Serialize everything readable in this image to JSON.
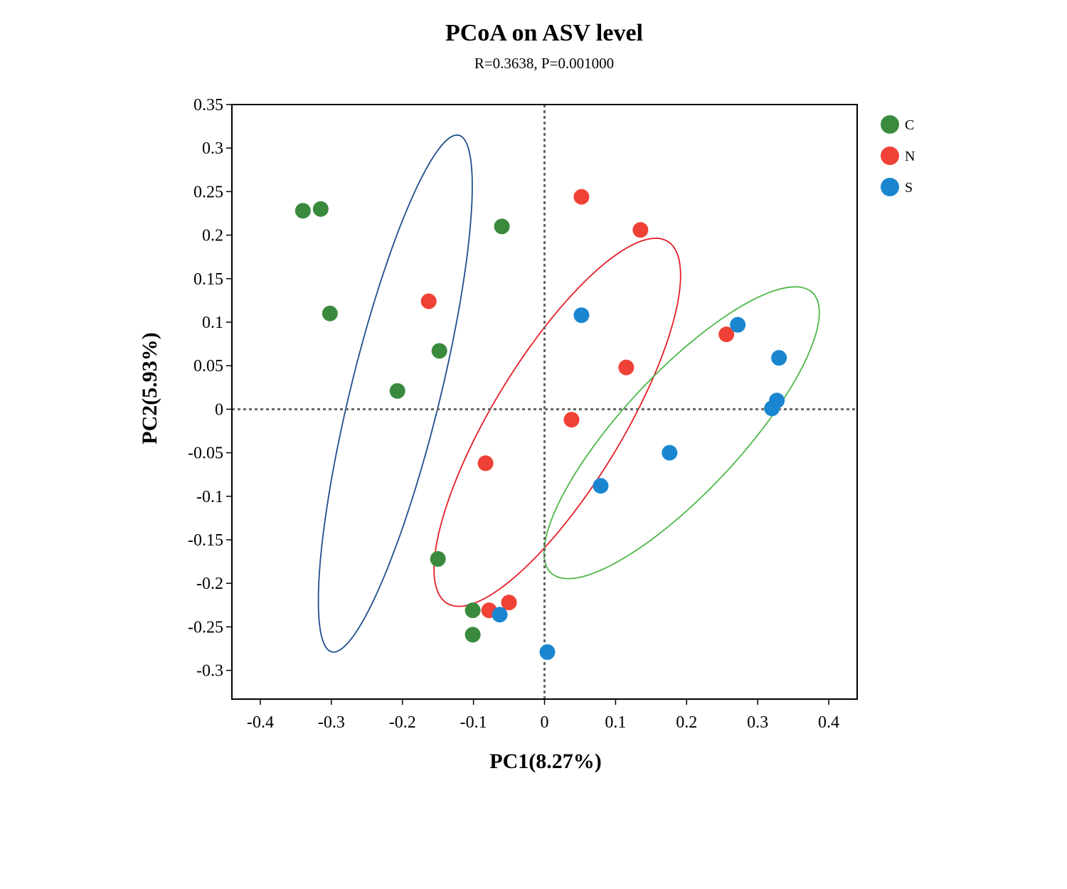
{
  "chart_data": {
    "type": "scatter",
    "title": "PCoA on ASV level",
    "subtitle": "R=0.3638, P=0.001000",
    "xlabel": "PC1(8.27%)",
    "ylabel": "PC2(5.93%)",
    "xlim": [
      -0.44,
      0.44
    ],
    "ylim": [
      -0.333,
      0.35
    ],
    "x_ticks": [
      -0.4,
      -0.3,
      -0.2,
      -0.1,
      0,
      0.1,
      0.2,
      0.3,
      0.4
    ],
    "x_tick_labels": [
      "-0.4",
      "-0.3",
      "-0.2",
      "-0.1",
      "0",
      "0.1",
      "0.2",
      "0.3",
      "0.4"
    ],
    "y_ticks": [
      0.35,
      0.3,
      0.25,
      0.2,
      0.15,
      0.1,
      0.05,
      0,
      -0.05,
      -0.1,
      -0.15,
      -0.2,
      -0.25,
      -0.3
    ],
    "y_tick_labels": [
      "0.35",
      "0.3",
      "0.25",
      "0.2",
      "0.15",
      "0.1",
      "0.05",
      "0",
      "-0.05",
      "-0.1",
      "-0.15",
      "-0.2",
      "-0.25",
      "-0.3"
    ],
    "grid": false,
    "zero_lines": "dotted",
    "legend_position": "right",
    "series": [
      {
        "name": "C",
        "color": "#3a8a3e",
        "points": [
          [
            -0.34,
            0.228
          ],
          [
            -0.315,
            0.23
          ],
          [
            -0.302,
            0.11
          ],
          [
            -0.06,
            0.21
          ],
          [
            -0.148,
            0.067
          ],
          [
            -0.207,
            0.021
          ],
          [
            -0.15,
            -0.172
          ],
          [
            -0.101,
            -0.231
          ],
          [
            -0.101,
            -0.259
          ]
        ]
      },
      {
        "name": "N",
        "color": "#ef4136",
        "points": [
          [
            0.052,
            0.244
          ],
          [
            0.135,
            0.206
          ],
          [
            -0.163,
            0.124
          ],
          [
            0.256,
            0.086
          ],
          [
            0.115,
            0.048
          ],
          [
            0.038,
            -0.012
          ],
          [
            -0.083,
            -0.062
          ],
          [
            -0.078,
            -0.231
          ],
          [
            -0.05,
            -0.222
          ]
        ]
      },
      {
        "name": "S",
        "color": "#1b86d0",
        "points": [
          [
            0.052,
            0.108
          ],
          [
            0.272,
            0.097
          ],
          [
            0.33,
            0.059
          ],
          [
            0.327,
            0.01
          ],
          [
            0.32,
            0.001
          ],
          [
            0.176,
            -0.05
          ],
          [
            0.079,
            -0.088
          ],
          [
            -0.063,
            -0.236
          ],
          [
            0.004,
            -0.279
          ]
        ]
      }
    ],
    "ellipses": [
      {
        "series": "C",
        "color": "#1f4e8c",
        "cx": -0.21,
        "cy": 0.018,
        "rx": 0.31,
        "ry": 0.062,
        "angle_deg": 73
      },
      {
        "series": "N",
        "color": "#e41e26",
        "cx": 0.018,
        "cy": -0.015,
        "rx": 0.26,
        "ry": 0.085,
        "angle_deg": 52
      },
      {
        "series": "S",
        "color": "#4db848",
        "cx": 0.193,
        "cy": -0.027,
        "rx": 0.245,
        "ry": 0.075,
        "angle_deg": 40
      }
    ]
  }
}
